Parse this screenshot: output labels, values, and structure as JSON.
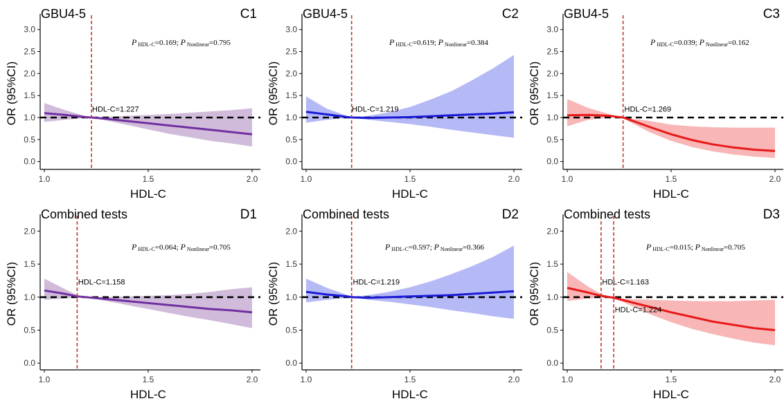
{
  "colors": {
    "purple_line": "#7030a0",
    "purple_band": "#c8b0d4",
    "blue_line": "#1a1ad6",
    "blue_band": "#a8adf5",
    "red_line": "#e81919",
    "red_band": "#f7a9a9",
    "vline": "#c0392b",
    "refline": "#000000"
  },
  "chart_data": [
    {
      "id": "C1",
      "type": "line",
      "title": "GBU4-5",
      "panel_label": "C1",
      "xlabel": "HDL-C",
      "ylabel": "OR (95%CI)",
      "xlim": [
        0.98,
        2.02
      ],
      "ylim": [
        -0.1,
        3.2
      ],
      "xticks": [
        1.0,
        1.5,
        2.0
      ],
      "xtick_labels": [
        "1.0",
        "1.5",
        "2.0"
      ],
      "yticks": [
        0,
        0.5,
        1,
        1.5,
        2,
        2.5,
        3
      ],
      "ytick_labels": [
        "0.0",
        "0.5",
        "1.0",
        "1.5",
        "2.0",
        "2.5",
        "3.0"
      ],
      "annotation": {
        "p_hdl": "0.169",
        "p_nonlinear": "0.795",
        "x": 1.42,
        "y": 2.65
      },
      "cutpoints": [
        {
          "x": 1.227,
          "label": "HDL-C=1.227",
          "label_x": 1.23,
          "label_y": 1.13
        }
      ],
      "palette": "purple",
      "series": {
        "x": [
          1.0,
          1.1,
          1.2,
          1.227,
          1.3,
          1.4,
          1.5,
          1.6,
          1.7,
          1.8,
          1.9,
          2.0
        ],
        "y": [
          1.1,
          1.06,
          1.01,
          1.0,
          0.97,
          0.92,
          0.87,
          0.82,
          0.77,
          0.72,
          0.67,
          0.62
        ],
        "lower": [
          0.9,
          0.95,
          0.99,
          1.0,
          0.93,
          0.83,
          0.73,
          0.63,
          0.55,
          0.47,
          0.41,
          0.34
        ],
        "upper": [
          1.33,
          1.17,
          1.03,
          1.0,
          1.02,
          1.04,
          1.06,
          1.08,
          1.11,
          1.14,
          1.17,
          1.21
        ]
      }
    },
    {
      "id": "C2",
      "type": "line",
      "title": "GBU4-5",
      "panel_label": "C2",
      "xlabel": "HDL-C",
      "ylabel": "OR (95%CI)",
      "xlim": [
        0.98,
        2.02
      ],
      "ylim": [
        -0.1,
        3.2
      ],
      "xticks": [
        1.0,
        1.5,
        2.0
      ],
      "xtick_labels": [
        "1.0",
        "1.5",
        "2.0"
      ],
      "yticks": [
        0,
        0.5,
        1,
        1.5,
        2,
        2.5,
        3
      ],
      "ytick_labels": [
        "0.0",
        "0.5",
        "1.0",
        "1.5",
        "2.0",
        "2.5",
        "3.0"
      ],
      "annotation": {
        "p_hdl": "0.619",
        "p_nonlinear": "0.384",
        "x": 1.4,
        "y": 2.65
      },
      "cutpoints": [
        {
          "x": 1.219,
          "label": "HDL-C=1.219",
          "label_x": 1.22,
          "label_y": 1.13
        }
      ],
      "palette": "blue",
      "series": {
        "x": [
          1.0,
          1.1,
          1.2,
          1.219,
          1.3,
          1.4,
          1.5,
          1.6,
          1.7,
          1.8,
          1.9,
          2.0
        ],
        "y": [
          1.13,
          1.07,
          1.01,
          1.0,
          0.99,
          1.0,
          1.01,
          1.03,
          1.05,
          1.07,
          1.09,
          1.12
        ],
        "lower": [
          0.88,
          0.95,
          0.99,
          1.0,
          0.95,
          0.9,
          0.85,
          0.79,
          0.72,
          0.66,
          0.6,
          0.54
        ],
        "upper": [
          1.48,
          1.2,
          1.03,
          1.0,
          1.04,
          1.12,
          1.24,
          1.41,
          1.6,
          1.85,
          2.12,
          2.42
        ]
      }
    },
    {
      "id": "C3",
      "type": "line",
      "title": "GBU4-5",
      "panel_label": "C3",
      "xlabel": "HDL-C",
      "ylabel": "OR (95%CI)",
      "xlim": [
        0.98,
        2.02
      ],
      "ylim": [
        -0.1,
        3.2
      ],
      "xticks": [
        1.0,
        1.5,
        2.0
      ],
      "xtick_labels": [
        "1.0",
        "1.5",
        "2.0"
      ],
      "yticks": [
        0,
        0.5,
        1,
        1.5,
        2,
        2.5,
        3
      ],
      "ytick_labels": [
        "0.0",
        "0.5",
        "1.0",
        "1.5",
        "2.0",
        "2.5",
        "3.0"
      ],
      "annotation": {
        "p_hdl": "0.039",
        "p_nonlinear": "0.162",
        "x": 1.4,
        "y": 2.65
      },
      "cutpoints": [
        {
          "x": 1.269,
          "label": "HDL-C=1.269",
          "label_x": 1.275,
          "label_y": 1.13
        }
      ],
      "palette": "red",
      "series": {
        "x": [
          1.0,
          1.1,
          1.2,
          1.269,
          1.3,
          1.4,
          1.5,
          1.6,
          1.7,
          1.8,
          1.9,
          2.0
        ],
        "y": [
          1.05,
          1.06,
          1.04,
          1.0,
          0.95,
          0.78,
          0.62,
          0.49,
          0.39,
          0.32,
          0.27,
          0.24
        ],
        "lower": [
          0.8,
          0.95,
          1.0,
          1.0,
          0.9,
          0.66,
          0.47,
          0.33,
          0.23,
          0.16,
          0.11,
          0.08
        ],
        "upper": [
          1.42,
          1.22,
          1.08,
          1.0,
          0.98,
          0.92,
          0.84,
          0.8,
          0.78,
          0.77,
          0.77,
          0.77
        ]
      }
    },
    {
      "id": "D1",
      "type": "line",
      "title": "Combined tests",
      "panel_label": "D1",
      "xlabel": "HDL-C",
      "ylabel": "OR (95%CI)",
      "xlim": [
        0.98,
        2.02
      ],
      "ylim": [
        -0.05,
        2.15
      ],
      "xticks": [
        1.0,
        1.5,
        2.0
      ],
      "xtick_labels": [
        "1.0",
        "1.5",
        "2.0"
      ],
      "yticks": [
        0,
        0.5,
        1,
        1.5,
        2
      ],
      "ytick_labels": [
        "0.0",
        "0.5",
        "1.0",
        "1.5",
        "2.0"
      ],
      "annotation": {
        "p_hdl": "0.064",
        "p_nonlinear": "0.705",
        "x": 1.42,
        "y": 1.72
      },
      "cutpoints": [
        {
          "x": 1.158,
          "label": "HDL-C=1.158",
          "label_x": 1.163,
          "label_y": 1.19
        }
      ],
      "palette": "purple",
      "series": {
        "x": [
          1.0,
          1.1,
          1.158,
          1.2,
          1.3,
          1.4,
          1.5,
          1.6,
          1.7,
          1.8,
          1.9,
          2.0
        ],
        "y": [
          1.1,
          1.05,
          1.01,
          1.0,
          0.97,
          0.94,
          0.91,
          0.88,
          0.85,
          0.82,
          0.8,
          0.77
        ],
        "lower": [
          0.96,
          0.98,
          0.99,
          1.0,
          0.94,
          0.88,
          0.82,
          0.76,
          0.7,
          0.65,
          0.59,
          0.53
        ],
        "upper": [
          1.28,
          1.12,
          1.03,
          1.0,
          1.0,
          1.01,
          1.02,
          1.03,
          1.05,
          1.08,
          1.12,
          1.15
        ]
      }
    },
    {
      "id": "D2",
      "type": "line",
      "title": "Combined tests",
      "panel_label": "D2",
      "xlabel": "HDL-C",
      "ylabel": "OR (95%CI)",
      "xlim": [
        0.98,
        2.02
      ],
      "ylim": [
        -0.05,
        2.15
      ],
      "xticks": [
        1.0,
        1.5,
        2.0
      ],
      "xtick_labels": [
        "1.0",
        "1.5",
        "2.0"
      ],
      "yticks": [
        0,
        0.5,
        1,
        1.5,
        2
      ],
      "ytick_labels": [
        "0.0",
        "0.5",
        "1.0",
        "1.5",
        "2.0"
      ],
      "annotation": {
        "p_hdl": "0.597",
        "p_nonlinear": "0.366",
        "x": 1.38,
        "y": 1.72
      },
      "cutpoints": [
        {
          "x": 1.219,
          "label": "HDL-C=1.219",
          "label_x": 1.225,
          "label_y": 1.19
        }
      ],
      "palette": "blue",
      "series": {
        "x": [
          1.0,
          1.1,
          1.2,
          1.219,
          1.3,
          1.4,
          1.5,
          1.6,
          1.7,
          1.8,
          1.9,
          2.0
        ],
        "y": [
          1.08,
          1.04,
          1.01,
          1.0,
          0.99,
          1.0,
          1.01,
          1.02,
          1.03,
          1.05,
          1.07,
          1.09
        ],
        "lower": [
          0.92,
          0.96,
          0.99,
          1.0,
          0.96,
          0.93,
          0.89,
          0.85,
          0.8,
          0.76,
          0.71,
          0.67
        ],
        "upper": [
          1.28,
          1.14,
          1.03,
          1.0,
          1.03,
          1.08,
          1.15,
          1.24,
          1.35,
          1.47,
          1.61,
          1.78
        ]
      }
    },
    {
      "id": "D3",
      "type": "line",
      "title": "Combined tests",
      "panel_label": "D3",
      "xlabel": "HDL-C",
      "ylabel": "OR (95%CI)",
      "xlim": [
        0.98,
        2.02
      ],
      "ylim": [
        -0.05,
        2.15
      ],
      "xticks": [
        1.0,
        1.5,
        2.0
      ],
      "xtick_labels": [
        "1.0",
        "1.5",
        "2.0"
      ],
      "yticks": [
        0,
        0.5,
        1,
        1.5,
        2
      ],
      "ytick_labels": [
        "0.0",
        "0.5",
        "1.0",
        "1.5",
        "2.0"
      ],
      "annotation": {
        "p_hdl": "0.015",
        "p_nonlinear": "0.705",
        "x": 1.38,
        "y": 1.72
      },
      "cutpoints": [
        {
          "x": 1.163,
          "label": "HDL-C=1.163",
          "label_x": 1.168,
          "label_y": 1.19
        },
        {
          "x": 1.224,
          "label": "HDL-C=1.224",
          "label_x": 1.229,
          "label_y": 0.77
        }
      ],
      "palette": "red",
      "series": {
        "x": [
          1.0,
          1.1,
          1.163,
          1.224,
          1.3,
          1.4,
          1.5,
          1.6,
          1.7,
          1.8,
          1.9,
          2.0
        ],
        "y": [
          1.14,
          1.07,
          1.02,
          0.99,
          0.93,
          0.85,
          0.77,
          0.7,
          0.63,
          0.58,
          0.53,
          0.5
        ],
        "lower": [
          0.94,
          0.98,
          0.99,
          0.99,
          0.88,
          0.74,
          0.62,
          0.52,
          0.44,
          0.37,
          0.31,
          0.27
        ],
        "upper": [
          1.38,
          1.16,
          1.05,
          0.99,
          0.97,
          0.96,
          0.95,
          0.94,
          0.94,
          0.94,
          0.95,
          0.96
        ]
      }
    }
  ]
}
